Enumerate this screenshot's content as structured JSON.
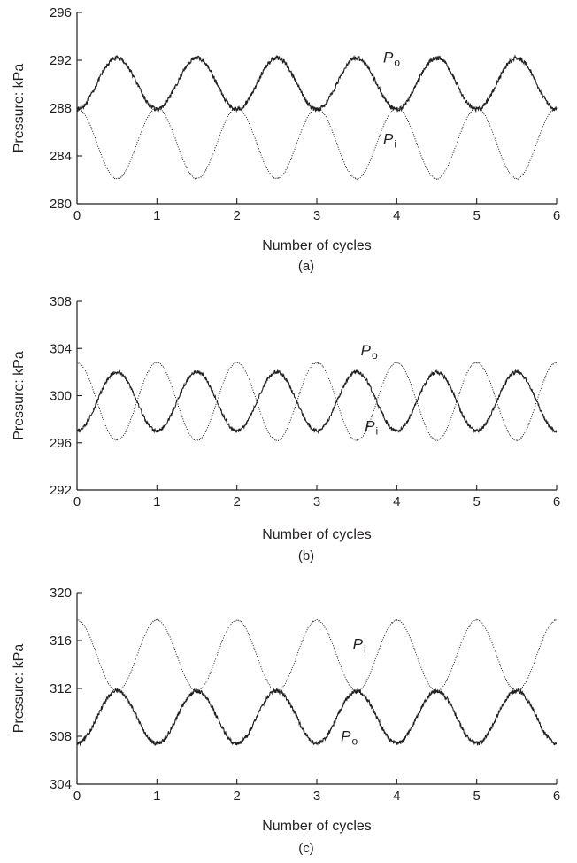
{
  "colors": {
    "ink": "#231f20",
    "background": "#ffffff"
  },
  "chart_data": [
    {
      "type": "line",
      "caption": "(a)",
      "xlabel": "Number of cycles",
      "ylabel": "Pressure: kPa",
      "xlim": [
        0,
        6
      ],
      "ylim": [
        280,
        296
      ],
      "xticks": [
        "0",
        "1",
        "2",
        "3",
        "4",
        "5",
        "6"
      ],
      "yticks": [
        "280",
        "284",
        "288",
        "292",
        "296"
      ],
      "series": [
        {
          "name": "P",
          "sub": "o",
          "style": "solid",
          "mean": 290.05,
          "amplitude": 2.15,
          "phase": -1,
          "noise": 0.18
        },
        {
          "name": "P",
          "sub": "i",
          "style": "dotted",
          "mean": 285.05,
          "amplitude": 2.95,
          "phase": 1,
          "noise": 0.05
        }
      ]
    },
    {
      "type": "line",
      "caption": "(b)",
      "xlabel": "Number of cycles",
      "ylabel": "Pressure: kPa",
      "xlim": [
        0,
        6
      ],
      "ylim": [
        292,
        308
      ],
      "xticks": [
        "0",
        "1",
        "2",
        "3",
        "4",
        "5",
        "6"
      ],
      "yticks": [
        "292",
        "296",
        "300",
        "304",
        "308"
      ],
      "series": [
        {
          "name": "P",
          "sub": "o",
          "style": "solid",
          "mean": 299.5,
          "amplitude": 2.5,
          "phase": -1,
          "noise": 0.15
        },
        {
          "name": "P",
          "sub": "i",
          "style": "dotted",
          "mean": 299.5,
          "amplitude": 3.3,
          "phase": 1,
          "noise": 0.05
        }
      ]
    },
    {
      "type": "line",
      "caption": "(c)",
      "xlabel": "Number of cycles",
      "ylabel": "Pressure: kPa",
      "xlim": [
        0,
        6
      ],
      "ylim": [
        304,
        320
      ],
      "xticks": [
        "0",
        "1",
        "2",
        "3",
        "4",
        "5",
        "6"
      ],
      "yticks": [
        "304",
        "308",
        "312",
        "316",
        "320"
      ],
      "series": [
        {
          "name": "P",
          "sub": "i",
          "style": "dotted",
          "mean": 314.75,
          "amplitude": 2.95,
          "phase": 1,
          "noise": 0.05
        },
        {
          "name": "P",
          "sub": "o",
          "style": "solid",
          "mean": 309.6,
          "amplitude": 2.2,
          "phase": -1,
          "noise": 0.18
        }
      ]
    }
  ]
}
